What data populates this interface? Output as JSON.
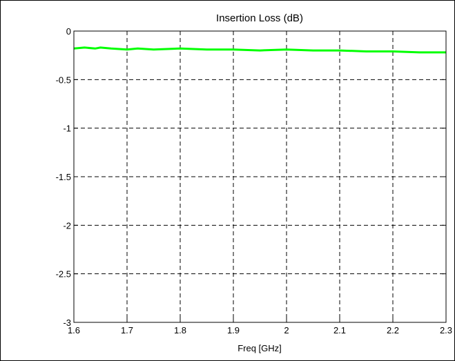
{
  "chart_data": {
    "type": "line",
    "title": "Insertion Loss (dB)",
    "xlabel": "Freq [GHz]",
    "ylabel": "",
    "xlim": [
      1.6,
      2.3
    ],
    "ylim": [
      -3,
      0
    ],
    "x_ticks": [
      "1.6",
      "1.7",
      "1.8",
      "1.9",
      "2",
      "2.1",
      "2.2",
      "2.3"
    ],
    "y_ticks": [
      "0",
      "-0.5",
      "-1",
      "-1.5",
      "-2",
      "-2.5",
      "-3"
    ],
    "grid": true,
    "grid_style": "dashed",
    "series": [
      {
        "color": "#00ff00",
        "x": [
          1.6,
          1.62,
          1.64,
          1.65,
          1.67,
          1.7,
          1.72,
          1.75,
          1.8,
          1.85,
          1.9,
          1.95,
          2.0,
          2.05,
          2.1,
          2.15,
          2.2,
          2.25,
          2.3
        ],
        "y": [
          -0.18,
          -0.17,
          -0.18,
          -0.17,
          -0.18,
          -0.19,
          -0.18,
          -0.19,
          -0.18,
          -0.19,
          -0.19,
          -0.2,
          -0.19,
          -0.2,
          -0.2,
          -0.21,
          -0.21,
          -0.22,
          -0.22
        ]
      }
    ]
  }
}
